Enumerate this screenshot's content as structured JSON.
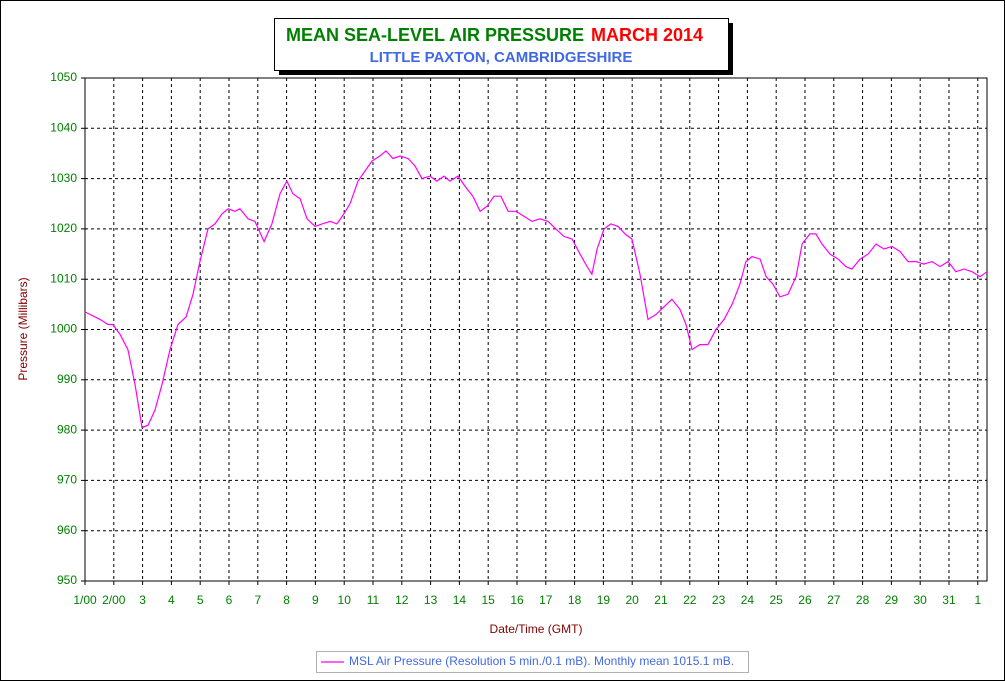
{
  "chart_data": {
    "type": "line",
    "title": "MEAN SEA-LEVEL AIR PRESSURE",
    "title_period": "MARCH 2014",
    "subtitle": "LITTLE PAXTON, CAMBRIDGESHIRE",
    "x_label": "Date/Time (GMT)",
    "y_label": "Pressure (Millibars)",
    "xlim": [
      0,
      31.32
    ],
    "ylim": [
      950,
      1050
    ],
    "yticks": [
      950,
      960,
      970,
      980,
      990,
      1000,
      1010,
      1020,
      1030,
      1040,
      1050
    ],
    "xticks": [
      {
        "value": 0,
        "label": "1/00"
      },
      {
        "value": 1,
        "label": "2/00"
      },
      {
        "value": 2,
        "label": "3"
      },
      {
        "value": 3,
        "label": "4"
      },
      {
        "value": 4,
        "label": "5"
      },
      {
        "value": 5,
        "label": "6"
      },
      {
        "value": 6,
        "label": "7"
      },
      {
        "value": 7,
        "label": "8"
      },
      {
        "value": 8,
        "label": "9"
      },
      {
        "value": 9,
        "label": "10"
      },
      {
        "value": 10,
        "label": "11"
      },
      {
        "value": 11,
        "label": "12"
      },
      {
        "value": 12,
        "label": "13"
      },
      {
        "value": 13,
        "label": "14"
      },
      {
        "value": 14,
        "label": "15"
      },
      {
        "value": 15,
        "label": "16"
      },
      {
        "value": 16,
        "label": "17"
      },
      {
        "value": 17,
        "label": "18"
      },
      {
        "value": 18,
        "label": "19"
      },
      {
        "value": 19,
        "label": "20"
      },
      {
        "value": 20,
        "label": "21"
      },
      {
        "value": 21,
        "label": "22"
      },
      {
        "value": 22,
        "label": "23"
      },
      {
        "value": 23,
        "label": "24"
      },
      {
        "value": 24,
        "label": "25"
      },
      {
        "value": 25,
        "label": "26"
      },
      {
        "value": 26,
        "label": "27"
      },
      {
        "value": 27,
        "label": "28"
      },
      {
        "value": 28,
        "label": "29"
      },
      {
        "value": 29,
        "label": "30"
      },
      {
        "value": 30,
        "label": "31"
      },
      {
        "value": 31,
        "label": "1"
      }
    ],
    "grid": true,
    "x": [
      0,
      0.17,
      0.52,
      0.8,
      0.97,
      1.22,
      1.49,
      1.74,
      1.98,
      2.19,
      2.43,
      2.67,
      2.95,
      3.23,
      3.51,
      3.75,
      3.99,
      4.27,
      4.51,
      4.76,
      4.97,
      5.21,
      5.38,
      5.66,
      5.9,
      6.22,
      6.49,
      6.77,
      7.01,
      7.22,
      7.47,
      7.71,
      7.99,
      8.23,
      8.51,
      8.75,
      8.99,
      9.2,
      9.48,
      9.72,
      9.97,
      10.24,
      10.45,
      10.69,
      10.94,
      11.22,
      11.46,
      11.7,
      11.98,
      12.22,
      12.47,
      12.67,
      12.95,
      13.19,
      13.47,
      13.72,
      13.96,
      14.2,
      14.44,
      14.69,
      14.97,
      15.24,
      15.52,
      15.8,
      16.08,
      16.35,
      16.63,
      16.91,
      17.19,
      17.43,
      17.6,
      17.78,
      18.02,
      18.26,
      18.51,
      18.75,
      18.99,
      19.27,
      19.55,
      19.83,
      20.1,
      20.38,
      20.66,
      20.87,
      21.08,
      21.35,
      21.63,
      21.91,
      22.19,
      22.47,
      22.74,
      22.95,
      23.16,
      23.44,
      23.65,
      23.89,
      24.13,
      24.41,
      24.69,
      24.9,
      25.17,
      25.38,
      25.59,
      25.87,
      26.15,
      26.42,
      26.63,
      26.91,
      27.19,
      27.47,
      27.74,
      28.02,
      28.3,
      28.58,
      28.85,
      29.13,
      29.41,
      29.69,
      29.97,
      30.24,
      30.52,
      30.8,
      31.08,
      31.32
    ],
    "series": [
      {
        "name": "MSL Air Pressure (Resolution 5 min./0.1 mB). Monthly mean 1015.1 mB.",
        "color": "#ff00ff",
        "values": [
          1003.5,
          1003,
          1002,
          1001,
          1001,
          999,
          996,
          989,
          980.5,
          981,
          984,
          989,
          996,
          1001,
          1002.5,
          1007,
          1013.5,
          1020,
          1021,
          1023,
          1024,
          1023.5,
          1024,
          1022,
          1021.5,
          1017.5,
          1021,
          1027,
          1029.5,
          1027,
          1026,
          1022,
          1020.5,
          1021,
          1021.5,
          1021,
          1023,
          1025,
          1029.5,
          1031.5,
          1033.5,
          1034.5,
          1035.5,
          1034,
          1034.5,
          1034,
          1032.5,
          1030,
          1030.5,
          1029.5,
          1030.5,
          1029.5,
          1030.5,
          1028.5,
          1026.5,
          1023.5,
          1024.5,
          1026.5,
          1026.5,
          1023.5,
          1023.5,
          1022.5,
          1021.5,
          1022,
          1021.5,
          1020,
          1018.5,
          1018,
          1015,
          1012.5,
          1011,
          1016,
          1020,
          1021,
          1020.5,
          1019,
          1018,
          1011,
          1002,
          1003,
          1004.5,
          1006,
          1004,
          1001,
          996,
          997,
          997,
          1000,
          1002,
          1005,
          1009,
          1013.5,
          1014.5,
          1014,
          1010.5,
          1009,
          1006.5,
          1007,
          1010.5,
          1017,
          1019,
          1019,
          1017,
          1015,
          1014,
          1012.5,
          1012,
          1014,
          1015,
          1017,
          1016,
          1016.5,
          1015.5,
          1013.5,
          1013.5,
          1013,
          1013.5,
          1012.5,
          1013.5,
          1011.5,
          1012,
          1011.5,
          1010.5,
          1011.5
        ]
      }
    ]
  }
}
